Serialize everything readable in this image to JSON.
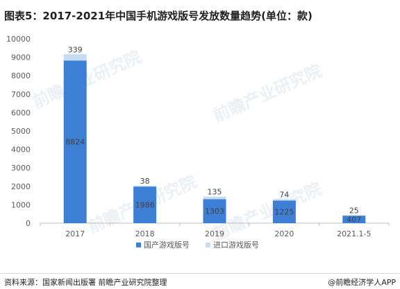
{
  "title": "图表5：2017-2021年中国手机游戏版号发放数量趋势(单位：款)",
  "source_label": "资料来源：国家新闻出版署 前瞻产业研究院整理",
  "brand_label": "@前瞻经济学人APP",
  "watermark_text": "前瞻产业研究院",
  "colors": {
    "domestic": "#3e7fd6",
    "imported": "#c5dcf4",
    "axis": "#bfbfbf",
    "tick_text": "#595959",
    "label_text": "#404040"
  },
  "chart_data": {
    "type": "bar",
    "stacked": true,
    "categories": [
      "2017",
      "2018",
      "2019",
      "2020",
      "2021.1-5"
    ],
    "series": [
      {
        "name": "国产游戏版号",
        "values": [
          8824,
          1986,
          1303,
          1225,
          407
        ]
      },
      {
        "name": "进口游戏版号",
        "values": [
          339,
          38,
          135,
          74,
          25
        ]
      }
    ],
    "y_ticks": [
      "0",
      "1000",
      "2000",
      "3000",
      "4000",
      "5000",
      "6000",
      "7000",
      "8000",
      "9000",
      "10000"
    ],
    "ylim": [
      0,
      10000
    ],
    "legend_position": "bottom",
    "grid": false
  }
}
